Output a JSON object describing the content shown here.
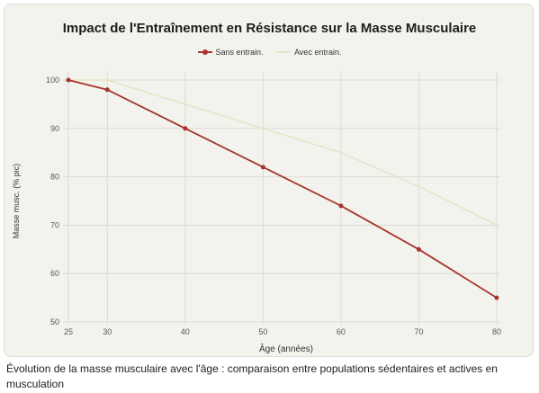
{
  "chart_data": {
    "type": "line",
    "title": "Impact de l'Entraînement en Résistance sur la Masse Musculaire",
    "xlabel": "Âge (années)",
    "ylabel": "Masse musc. (% pic)",
    "x_ticks": [
      25,
      30,
      40,
      50,
      60,
      70,
      80
    ],
    "y_ticks": [
      50,
      60,
      70,
      80,
      90,
      100
    ],
    "xlim": [
      25,
      80
    ],
    "ylim": [
      50,
      100
    ],
    "grid": true,
    "legend_position": "top-center",
    "series": [
      {
        "name": "Sans entrain.",
        "color": "#a8322d",
        "markers": true,
        "x": [
          25,
          30,
          40,
          50,
          60,
          70,
          80
        ],
        "y": [
          100,
          98,
          90,
          82,
          74,
          65,
          55
        ]
      },
      {
        "name": "Avec entrain.",
        "color": "#e7e3c4",
        "markers": false,
        "x": [
          25,
          30,
          40,
          50,
          60,
          70,
          80
        ],
        "y": [
          100,
          100,
          95,
          90,
          85,
          78,
          70
        ]
      }
    ]
  },
  "caption": "Évolution de la masse musculaire avec l'âge : comparaison entre populations sédentaires et actives en musculation"
}
